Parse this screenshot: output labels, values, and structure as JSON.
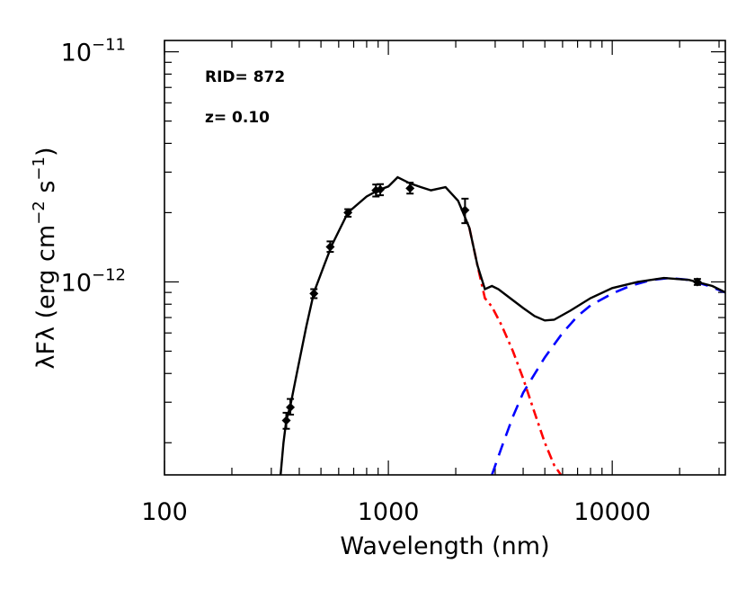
{
  "chart_data": {
    "type": "line",
    "xscale": "log",
    "yscale": "log",
    "xlim": [
      100,
      32000
    ],
    "ylim": [
      1.45e-13,
      1.12e-11
    ],
    "xlabel": "Wavelength (nm)",
    "ylabel_parts": {
      "lambda": "λ",
      "F": "F",
      "prefix": " (erg cm",
      "exp1": "−2",
      "mid": " s",
      "exp2": "−1",
      "suffix": ")"
    },
    "x_ticks": [
      {
        "value": 100,
        "label": "100"
      },
      {
        "value": 1000,
        "label": "1000"
      },
      {
        "value": 10000,
        "label": "10000"
      }
    ],
    "y_ticks": [
      {
        "value": 1e-11,
        "base": "10",
        "exp": "−11"
      },
      {
        "value": 1e-12,
        "base": "10",
        "exp": "−12"
      }
    ],
    "annotations": [
      "RID= 872",
      "z= 0.10"
    ],
    "grid": false,
    "colors": {
      "total": "#000000",
      "stellar": "#ff0000",
      "dust": "#0000ff",
      "points": "#000000"
    },
    "series": [
      {
        "key": "total",
        "style": "solid",
        "points": [
          [
            330,
            1.45e-13
          ],
          [
            340,
            2e-13
          ],
          [
            350,
            2.5e-13
          ],
          [
            365,
            2.9e-13
          ],
          [
            390,
            4e-13
          ],
          [
            430,
            6.4e-13
          ],
          [
            465,
            9e-13
          ],
          [
            520,
            1.2e-12
          ],
          [
            560,
            1.45e-12
          ],
          [
            660,
            2e-12
          ],
          [
            800,
            2.35e-12
          ],
          [
            900,
            2.5e-12
          ],
          [
            1000,
            2.6e-12
          ],
          [
            1100,
            2.85e-12
          ],
          [
            1250,
            2.68e-12
          ],
          [
            1400,
            2.58e-12
          ],
          [
            1550,
            2.5e-12
          ],
          [
            1800,
            2.58e-12
          ],
          [
            2050,
            2.25e-12
          ],
          [
            2300,
            1.72e-12
          ],
          [
            2500,
            1.18e-12
          ],
          [
            2700,
            9.3e-13
          ],
          [
            2900,
            9.6e-13
          ],
          [
            3100,
            9.3e-13
          ],
          [
            3500,
            8.5e-13
          ],
          [
            4000,
            7.7e-13
          ],
          [
            4500,
            7.1e-13
          ],
          [
            5000,
            6.8e-13
          ],
          [
            5500,
            6.85e-13
          ],
          [
            6500,
            7.5e-13
          ],
          [
            8000,
            8.5e-13
          ],
          [
            10000,
            9.4e-13
          ],
          [
            13000,
            1e-12
          ],
          [
            17000,
            1.04e-12
          ],
          [
            22000,
            1.02e-12
          ],
          [
            28000,
            9.6e-13
          ],
          [
            32000,
            9e-13
          ]
        ]
      },
      {
        "key": "stellar",
        "style": "dashdot",
        "points": [
          [
            2300,
            1.72e-12
          ],
          [
            2500,
            1.18e-12
          ],
          [
            2700,
            8.5e-13
          ],
          [
            2900,
            7.8e-13
          ],
          [
            3200,
            6.5e-13
          ],
          [
            3600,
            5e-13
          ],
          [
            4000,
            3.8e-13
          ],
          [
            4500,
            2.7e-13
          ],
          [
            5000,
            2e-13
          ],
          [
            5500,
            1.6e-13
          ],
          [
            5900,
            1.45e-13
          ]
        ]
      },
      {
        "key": "dust",
        "style": "dashed",
        "points": [
          [
            2900,
            1.45e-13
          ],
          [
            3200,
            1.9e-13
          ],
          [
            3600,
            2.6e-13
          ],
          [
            4000,
            3.3e-13
          ],
          [
            5000,
            4.7e-13
          ],
          [
            6000,
            6e-13
          ],
          [
            7000,
            7.1e-13
          ],
          [
            8000,
            7.9e-13
          ],
          [
            10000,
            8.9e-13
          ],
          [
            12000,
            9.6e-13
          ],
          [
            15000,
            1.02e-12
          ],
          [
            18000,
            1.04e-12
          ],
          [
            22000,
            1.02e-12
          ],
          [
            27000,
            9.6e-13
          ],
          [
            32000,
            9e-13
          ]
        ]
      }
    ],
    "data_points": [
      {
        "x": 350,
        "y": 2.5e-13,
        "err_lo": 2.3e-13,
        "err_hi": 2.7e-13
      },
      {
        "x": 365,
        "y": 2.85e-13,
        "err_lo": 2.65e-13,
        "err_hi": 3.1e-13
      },
      {
        "x": 465,
        "y": 8.9e-13,
        "err_lo": 8.5e-13,
        "err_hi": 9.3e-13
      },
      {
        "x": 550,
        "y": 1.42e-12,
        "err_lo": 1.35e-12,
        "err_hi": 1.5e-12
      },
      {
        "x": 660,
        "y": 2e-12,
        "err_lo": 1.92e-12,
        "err_hi": 2.07e-12
      },
      {
        "x": 880,
        "y": 2.5e-12,
        "err_lo": 2.35e-12,
        "err_hi": 2.65e-12
      },
      {
        "x": 920,
        "y": 2.52e-12,
        "err_lo": 2.38e-12,
        "err_hi": 2.66e-12
      },
      {
        "x": 1250,
        "y": 2.55e-12,
        "err_lo": 2.42e-12,
        "err_hi": 2.7e-12
      },
      {
        "x": 2200,
        "y": 2.05e-12,
        "err_lo": 1.8e-12,
        "err_hi": 2.3e-12
      },
      {
        "x": 24000,
        "y": 1e-12,
        "err_lo": 9.7e-13,
        "err_hi": 1.03e-12
      }
    ]
  }
}
